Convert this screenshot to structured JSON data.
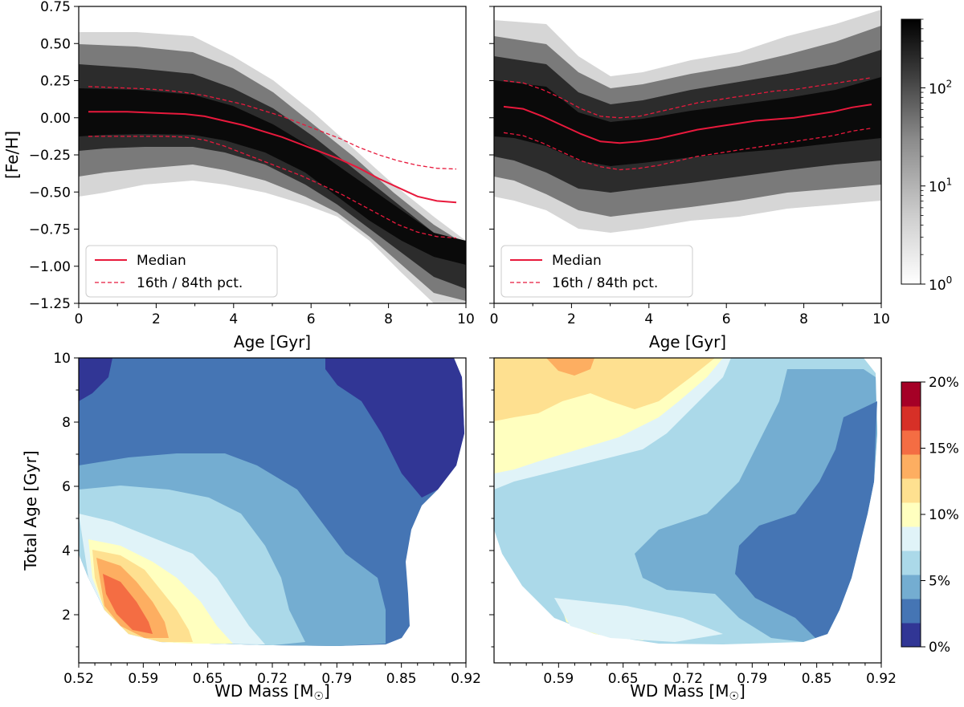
{
  "figure": {
    "description_panels": [
      "top-left",
      "top-right",
      "bottom-left",
      "bottom-right"
    ]
  },
  "chart_data": [
    {
      "type": "heatmap",
      "panel": "top-left",
      "xlabel": "Age [Gyr]",
      "ylabel": "[Fe/H]",
      "xlim": [
        0,
        10
      ],
      "ylim": [
        -1.25,
        0.75
      ],
      "xticks": [
        "0",
        "2",
        "4",
        "6",
        "8",
        "10"
      ],
      "yticks": [
        "0.75",
        "0.50",
        "0.25",
        "0.00",
        "−0.25",
        "−0.50",
        "−0.75",
        "−1.00",
        "−1.25"
      ],
      "series": [
        {
          "name": "Median",
          "style": "solid",
          "x": [
            0.25,
            0.75,
            1.25,
            1.75,
            2.25,
            2.75,
            3.25,
            3.75,
            4.25,
            4.75,
            5.25,
            5.75,
            6.25,
            6.75,
            7.25,
            7.75,
            8.25,
            8.75,
            9.25,
            9.75
          ],
          "values": [
            0.04,
            0.04,
            0.04,
            0.035,
            0.03,
            0.025,
            0.01,
            -0.02,
            -0.05,
            -0.09,
            -0.13,
            -0.18,
            -0.23,
            -0.28,
            -0.34,
            -0.41,
            -0.47,
            -0.53,
            -0.56,
            -0.57
          ]
        },
        {
          "name": "16th / 84th pct.",
          "style": "dashed",
          "x": [
            0.25,
            0.75,
            1.25,
            1.75,
            2.25,
            2.75,
            3.25,
            3.75,
            4.25,
            4.75,
            5.25,
            5.75,
            6.25,
            6.75,
            7.25,
            7.75,
            8.25,
            8.75,
            9.25,
            9.75
          ],
          "values": [
            0.21,
            0.205,
            0.2,
            0.195,
            0.185,
            0.17,
            0.15,
            0.12,
            0.09,
            0.05,
            0.01,
            -0.04,
            -0.09,
            -0.14,
            -0.2,
            -0.25,
            -0.29,
            -0.32,
            -0.34,
            -0.345
          ]
        },
        {
          "name": "16th pct.",
          "style": "dashed",
          "x": [
            0.25,
            0.75,
            1.25,
            1.75,
            2.25,
            2.75,
            3.25,
            3.75,
            4.25,
            4.75,
            5.25,
            5.75,
            6.25,
            6.75,
            7.25,
            7.75,
            8.25,
            8.75,
            9.25,
            9.75
          ],
          "values": [
            -0.125,
            -0.125,
            -0.125,
            -0.125,
            -0.125,
            -0.13,
            -0.15,
            -0.19,
            -0.24,
            -0.29,
            -0.34,
            -0.39,
            -0.45,
            -0.51,
            -0.58,
            -0.65,
            -0.72,
            -0.77,
            -0.8,
            -0.81
          ]
        }
      ],
      "legend": {
        "placement": "lower-left",
        "entries": [
          "Median",
          "16th / 84th pct."
        ]
      }
    },
    {
      "type": "heatmap",
      "panel": "top-right",
      "xlabel": "Age [Gyr]",
      "ylabel": "",
      "xlim": [
        0,
        10
      ],
      "ylim": [
        -1.25,
        0.75
      ],
      "xticks": [
        "0",
        "2",
        "4",
        "6",
        "8",
        "10"
      ],
      "series": [
        {
          "name": "Median",
          "style": "solid",
          "x": [
            0.25,
            0.75,
            1.25,
            1.75,
            2.25,
            2.75,
            3.25,
            3.75,
            4.25,
            4.75,
            5.25,
            5.75,
            6.25,
            6.75,
            7.25,
            7.75,
            8.25,
            8.75,
            9.25,
            9.75
          ],
          "values": [
            0.075,
            0.06,
            0.01,
            -0.05,
            -0.11,
            -0.16,
            -0.17,
            -0.16,
            -0.14,
            -0.11,
            -0.08,
            -0.06,
            -0.04,
            -0.02,
            -0.01,
            0.0,
            0.02,
            0.04,
            0.07,
            0.09
          ]
        },
        {
          "name": "16th / 84th pct.",
          "style": "dashed",
          "x": [
            0.25,
            0.75,
            1.25,
            1.75,
            2.25,
            2.75,
            3.25,
            3.75,
            4.25,
            4.75,
            5.25,
            5.75,
            6.25,
            6.75,
            7.25,
            7.75,
            8.25,
            8.75,
            9.25,
            9.75
          ],
          "values": [
            0.25,
            0.235,
            0.19,
            0.13,
            0.06,
            0.01,
            0.0,
            0.01,
            0.04,
            0.07,
            0.1,
            0.12,
            0.14,
            0.16,
            0.18,
            0.19,
            0.21,
            0.23,
            0.25,
            0.27
          ]
        },
        {
          "name": "16th pct.",
          "style": "dashed",
          "x": [
            0.25,
            0.75,
            1.25,
            1.75,
            2.25,
            2.75,
            3.25,
            3.75,
            4.25,
            4.75,
            5.25,
            5.75,
            6.25,
            6.75,
            7.25,
            7.75,
            8.25,
            8.75,
            9.25,
            9.75
          ],
          "values": [
            -0.1,
            -0.12,
            -0.17,
            -0.23,
            -0.29,
            -0.33,
            -0.35,
            -0.34,
            -0.32,
            -0.29,
            -0.26,
            -0.24,
            -0.22,
            -0.2,
            -0.18,
            -0.16,
            -0.14,
            -0.12,
            -0.09,
            -0.07
          ]
        }
      ],
      "legend": {
        "placement": "lower-left",
        "entries": [
          "Median",
          "16th / 84th pct."
        ]
      }
    },
    {
      "type": "colorbar",
      "panel": "top-colorbar",
      "scale": "log",
      "range": [
        1,
        500
      ],
      "ticks": [
        "10",
        "10",
        "10"
      ],
      "tick_exponents": [
        "0",
        "1",
        "2"
      ],
      "tick_values": [
        1,
        10,
        100
      ]
    },
    {
      "type": "heatmap",
      "panel": "bottom-left",
      "xlabel": "WD Mass [M",
      "xlabel_symbol": "☉",
      "xlabel_close": "]",
      "ylabel": "Total Age [Gyr]",
      "xlim": [
        0.52,
        0.92
      ],
      "ylim": [
        0.5,
        10
      ],
      "xticks": [
        "0.52",
        "0.59",
        "0.65",
        "0.72",
        "0.79",
        "0.85",
        "0.92"
      ],
      "yticks": [
        "2",
        "4",
        "6",
        "8",
        "10"
      ]
    },
    {
      "type": "heatmap",
      "panel": "bottom-right",
      "xlabel": "WD Mass [M",
      "xlabel_symbol": "☉",
      "xlabel_close": "]",
      "ylabel": "",
      "xlim": [
        0.52,
        0.92
      ],
      "ylim": [
        0.5,
        10
      ],
      "xticks": [
        "0.59",
        "0.65",
        "0.72",
        "0.79",
        "0.85",
        "0.92"
      ]
    },
    {
      "type": "colorbar",
      "panel": "bottom-colorbar",
      "scale": "linear",
      "range": [
        0,
        20
      ],
      "ticks": [
        "0%",
        "5%",
        "10%",
        "15%",
        "20%"
      ],
      "tick_values": [
        0,
        5,
        10,
        15,
        20
      ],
      "levels": 11,
      "colors": [
        "#313695",
        "#4575b4",
        "#74add1",
        "#abd9e9",
        "#e0f3f8",
        "#ffffbf",
        "#fee090",
        "#fdae61",
        "#f46d43",
        "#d73027",
        "#a50026"
      ]
    }
  ],
  "palette": {
    "median_line": "#e8193c",
    "frame": "#000000"
  }
}
